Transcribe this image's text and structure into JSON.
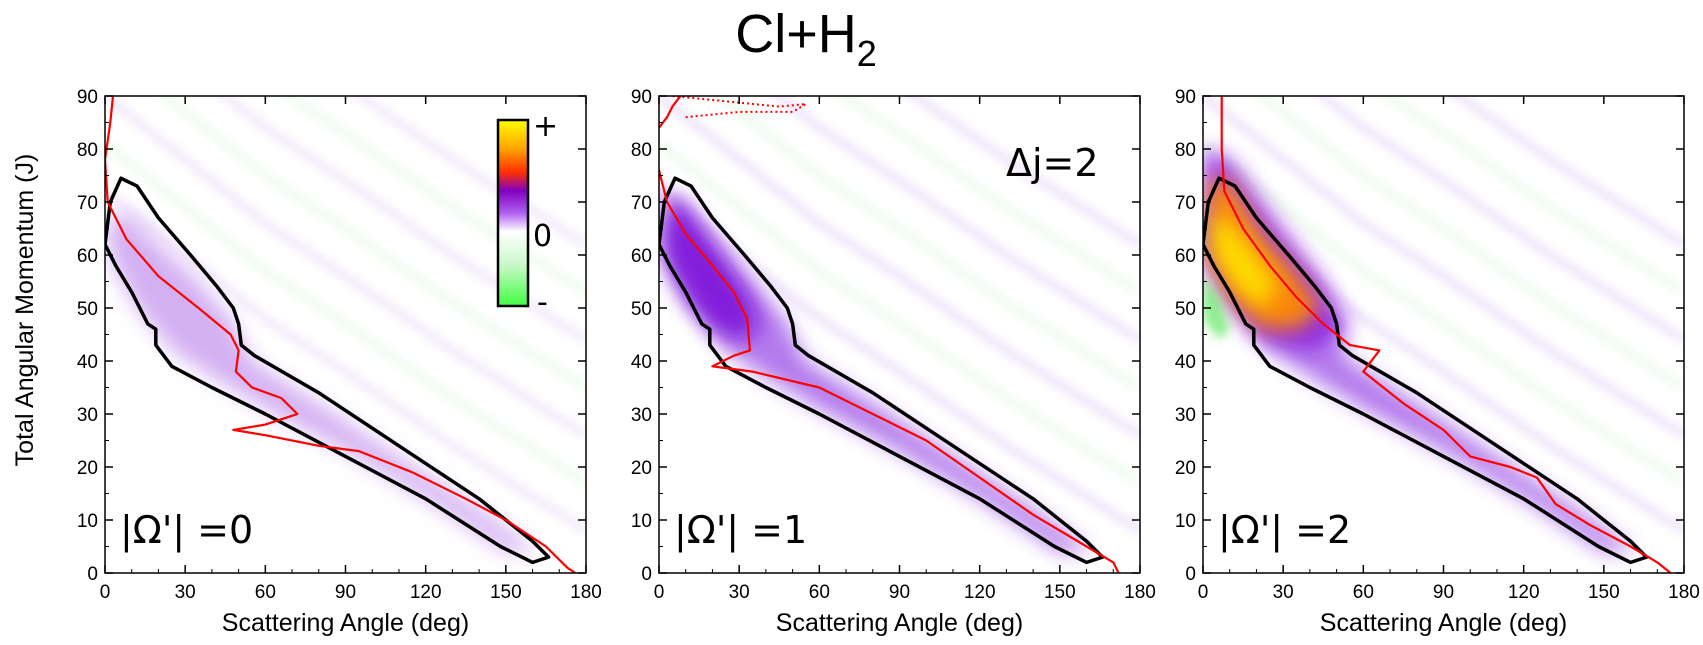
{
  "title": {
    "main": "Cl+H",
    "sub": "2"
  },
  "y_label": "Total Angular Momentum (J)",
  "annotation": "Δj=2",
  "colorbar": {
    "plus": "+",
    "zero": "0",
    "minus": "-",
    "colors": [
      "#40ff40",
      "#ffffff",
      "#a020f0",
      "#ff6000",
      "#ffff00"
    ]
  },
  "colors": {
    "outline": "#000000",
    "red": "#ff0000",
    "purple": "#8a2be2",
    "orange": "#ff8c00",
    "yellow": "#ffee00",
    "green": "#8ef08e"
  },
  "chart_data": [
    {
      "type": "heatmap",
      "panel_label": "|Ω'| =0",
      "xlabel": "Scattering Angle (deg)",
      "ylabel": "Total Angular Momentum (J)",
      "xlim": [
        0,
        180
      ],
      "ylim": [
        0,
        90
      ],
      "x_ticks": [
        0,
        30,
        60,
        90,
        120,
        150,
        180
      ],
      "y_ticks": [
        0,
        10,
        20,
        30,
        40,
        50,
        60,
        70,
        80,
        90
      ],
      "contour": [
        [
          0,
          62
        ],
        [
          2,
          70
        ],
        [
          6,
          74.5
        ],
        [
          12,
          73
        ],
        [
          20,
          67
        ],
        [
          32,
          60
        ],
        [
          42,
          54
        ],
        [
          48,
          50
        ],
        [
          50,
          47
        ],
        [
          51,
          43
        ],
        [
          56,
          41
        ],
        [
          80,
          34
        ],
        [
          110,
          24
        ],
        [
          140,
          14
        ],
        [
          160,
          6
        ],
        [
          166,
          3
        ],
        [
          160,
          2
        ],
        [
          148,
          5
        ],
        [
          120,
          14
        ],
        [
          90,
          22
        ],
        [
          60,
          30
        ],
        [
          40,
          35
        ],
        [
          25,
          39
        ],
        [
          19,
          43
        ],
        [
          19,
          46
        ],
        [
          16,
          47
        ],
        [
          10,
          53
        ],
        [
          4,
          58
        ],
        [
          0,
          62
        ]
      ],
      "red_curve": [
        [
          3,
          90
        ],
        [
          2,
          85
        ],
        [
          0,
          78
        ],
        [
          1,
          70
        ],
        [
          8,
          63
        ],
        [
          20,
          56
        ],
        [
          35,
          50
        ],
        [
          47,
          45
        ],
        [
          50,
          42
        ],
        [
          49,
          38
        ],
        [
          55,
          35
        ],
        [
          66,
          33
        ],
        [
          72,
          30
        ],
        [
          60,
          28
        ],
        [
          48,
          27
        ],
        [
          60,
          26
        ],
        [
          80,
          24
        ],
        [
          95,
          23
        ],
        [
          115,
          19
        ],
        [
          135,
          14
        ],
        [
          150,
          10
        ],
        [
          165,
          5
        ],
        [
          173,
          1
        ],
        [
          176,
          0
        ]
      ],
      "red_dotted": [
        [
          [
            72,
            30
          ],
          [
            60,
            28
          ],
          [
            48,
            27
          ]
        ],
        [
          [
            48,
            27
          ],
          [
            60,
            26
          ],
          [
            80,
            24
          ]
        ]
      ]
    },
    {
      "type": "heatmap",
      "panel_label": "|Ω'| =1",
      "xlabel": "Scattering Angle (deg)",
      "ylabel": "Total Angular Momentum (J)",
      "xlim": [
        0,
        180
      ],
      "ylim": [
        0,
        90
      ],
      "x_ticks": [
        0,
        30,
        60,
        90,
        120,
        150,
        180
      ],
      "y_ticks": [
        0,
        10,
        20,
        30,
        40,
        50,
        60,
        70,
        80,
        90
      ],
      "contour": [
        [
          0,
          62
        ],
        [
          2,
          70
        ],
        [
          6,
          74.5
        ],
        [
          12,
          73
        ],
        [
          20,
          67
        ],
        [
          32,
          60
        ],
        [
          42,
          54
        ],
        [
          48,
          50
        ],
        [
          50,
          47
        ],
        [
          51,
          43
        ],
        [
          56,
          41
        ],
        [
          80,
          34
        ],
        [
          110,
          24
        ],
        [
          140,
          14
        ],
        [
          160,
          6
        ],
        [
          166,
          3
        ],
        [
          160,
          2
        ],
        [
          148,
          5
        ],
        [
          120,
          14
        ],
        [
          90,
          22
        ],
        [
          60,
          30
        ],
        [
          40,
          35
        ],
        [
          25,
          39
        ],
        [
          19,
          43
        ],
        [
          19,
          46
        ],
        [
          16,
          47
        ],
        [
          10,
          53
        ],
        [
          4,
          58
        ],
        [
          0,
          62
        ]
      ],
      "red_curve": [
        [
          0,
          76
        ],
        [
          3,
          70
        ],
        [
          10,
          64
        ],
        [
          20,
          58
        ],
        [
          28,
          53
        ],
        [
          33,
          48
        ],
        [
          34,
          42
        ],
        [
          28,
          41
        ],
        [
          20,
          39
        ],
        [
          35,
          38
        ],
        [
          60,
          35
        ],
        [
          80,
          30
        ],
        [
          100,
          25
        ],
        [
          120,
          18
        ],
        [
          140,
          11
        ],
        [
          160,
          5
        ],
        [
          170,
          2
        ],
        [
          172,
          0
        ]
      ],
      "red_dotted": [
        [
          [
            20,
            39
          ],
          [
            35,
            38
          ],
          [
            60,
            35
          ]
        ],
        [
          [
            5,
            90
          ],
          [
            25,
            89
          ],
          [
            45,
            88
          ],
          [
            55,
            88.5
          ],
          [
            50,
            87
          ],
          [
            30,
            87
          ],
          [
            10,
            86
          ]
        ]
      ],
      "red_top": [
        [
          0,
          84
        ],
        [
          3,
          86
        ],
        [
          5,
          88
        ],
        [
          8,
          90
        ]
      ]
    },
    {
      "type": "heatmap",
      "panel_label": "|Ω'| =2",
      "xlabel": "Scattering Angle (deg)",
      "ylabel": "Total Angular Momentum (J)",
      "xlim": [
        0,
        180
      ],
      "ylim": [
        0,
        90
      ],
      "x_ticks": [
        0,
        30,
        60,
        90,
        120,
        150,
        180
      ],
      "y_ticks": [
        0,
        10,
        20,
        30,
        40,
        50,
        60,
        70,
        80,
        90
      ],
      "contour": [
        [
          0,
          62
        ],
        [
          2,
          70
        ],
        [
          6,
          74.5
        ],
        [
          12,
          73
        ],
        [
          20,
          67
        ],
        [
          32,
          60
        ],
        [
          42,
          54
        ],
        [
          48,
          50
        ],
        [
          50,
          47
        ],
        [
          51,
          43
        ],
        [
          56,
          41
        ],
        [
          80,
          34
        ],
        [
          110,
          24
        ],
        [
          140,
          14
        ],
        [
          160,
          6
        ],
        [
          166,
          3
        ],
        [
          160,
          2
        ],
        [
          148,
          5
        ],
        [
          120,
          14
        ],
        [
          90,
          22
        ],
        [
          60,
          30
        ],
        [
          40,
          35
        ],
        [
          25,
          39
        ],
        [
          19,
          43
        ],
        [
          19,
          46
        ],
        [
          16,
          47
        ],
        [
          10,
          53
        ],
        [
          4,
          58
        ],
        [
          0,
          62
        ]
      ],
      "red_curve": [
        [
          7,
          90
        ],
        [
          7,
          80
        ],
        [
          8,
          72
        ],
        [
          15,
          65
        ],
        [
          25,
          58
        ],
        [
          35,
          52
        ],
        [
          45,
          47
        ],
        [
          55,
          43
        ],
        [
          66,
          42
        ],
        [
          63,
          40
        ],
        [
          60,
          38
        ],
        [
          65,
          36
        ],
        [
          75,
          32
        ],
        [
          90,
          27
        ],
        [
          100,
          22
        ],
        [
          115,
          20
        ],
        [
          125,
          18
        ],
        [
          132,
          13
        ],
        [
          145,
          9
        ],
        [
          160,
          5
        ],
        [
          170,
          2
        ],
        [
          175,
          0
        ]
      ],
      "red_dotted": []
    }
  ]
}
